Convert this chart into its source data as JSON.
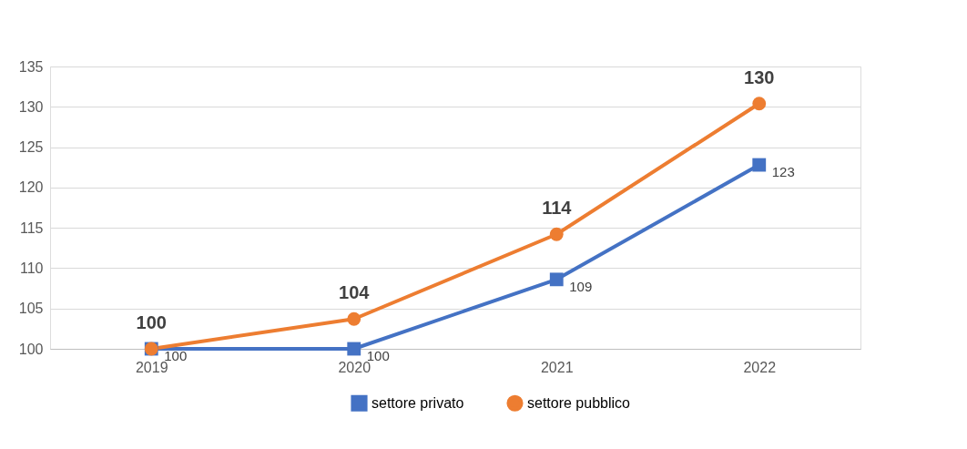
{
  "chart_data": {
    "type": "line",
    "categories": [
      "2019",
      "2020",
      "2021",
      "2022"
    ],
    "series": [
      {
        "name": "settore privato",
        "color": "#4472c4",
        "marker": "square",
        "values": [
          100,
          100,
          108.6,
          122.8
        ],
        "value_labels": [
          "100",
          "100",
          "109",
          "123"
        ]
      },
      {
        "name": "settore pubblico",
        "color": "#ed7d31",
        "marker": "circle",
        "values": [
          100,
          103.7,
          114.2,
          130.4
        ],
        "value_labels": [
          "100",
          "104",
          "114",
          "130"
        ]
      }
    ],
    "ylim": [
      100,
      135
    ],
    "yticks": [
      100,
      105,
      110,
      115,
      120,
      125,
      130,
      135
    ],
    "grid": "y",
    "legend": "bottom",
    "line_style": "solid"
  }
}
